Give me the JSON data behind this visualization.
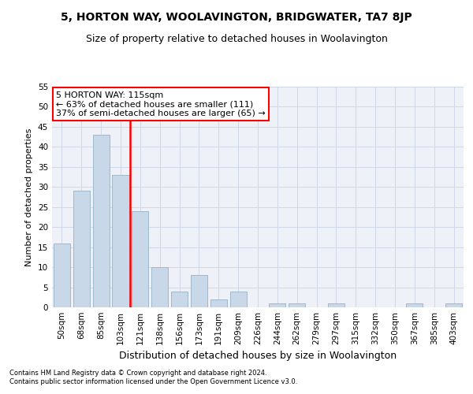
{
  "title": "5, HORTON WAY, WOOLAVINGTON, BRIDGWATER, TA7 8JP",
  "subtitle": "Size of property relative to detached houses in Woolavington",
  "xlabel": "Distribution of detached houses by size in Woolavington",
  "ylabel": "Number of detached properties",
  "footnote1": "Contains HM Land Registry data © Crown copyright and database right 2024.",
  "footnote2": "Contains public sector information licensed under the Open Government Licence v3.0.",
  "categories": [
    "50sqm",
    "68sqm",
    "85sqm",
    "103sqm",
    "121sqm",
    "138sqm",
    "156sqm",
    "173sqm",
    "191sqm",
    "209sqm",
    "226sqm",
    "244sqm",
    "262sqm",
    "279sqm",
    "297sqm",
    "315sqm",
    "332sqm",
    "350sqm",
    "367sqm",
    "385sqm",
    "403sqm"
  ],
  "values": [
    16,
    29,
    43,
    33,
    24,
    10,
    4,
    8,
    2,
    4,
    0,
    1,
    1,
    0,
    1,
    0,
    0,
    0,
    1,
    0,
    1
  ],
  "bar_color": "#c8d8e8",
  "bar_edge_color": "#a0b8cc",
  "vline_x": 3.5,
  "vline_color": "red",
  "annotation_text": "5 HORTON WAY: 115sqm\n← 63% of detached houses are smaller (111)\n37% of semi-detached houses are larger (65) →",
  "annotation_box_color": "white",
  "annotation_box_edge": "red",
  "ylim": [
    0,
    55
  ],
  "yticks": [
    0,
    5,
    10,
    15,
    20,
    25,
    30,
    35,
    40,
    45,
    50,
    55
  ],
  "grid_color": "#d0d8e8",
  "background_color": "white",
  "ax_background": "#eef2f8",
  "title_fontsize": 10,
  "subtitle_fontsize": 9,
  "xlabel_fontsize": 9,
  "ylabel_fontsize": 8,
  "tick_fontsize": 7.5,
  "annotation_fontsize": 8,
  "footnote_fontsize": 6
}
